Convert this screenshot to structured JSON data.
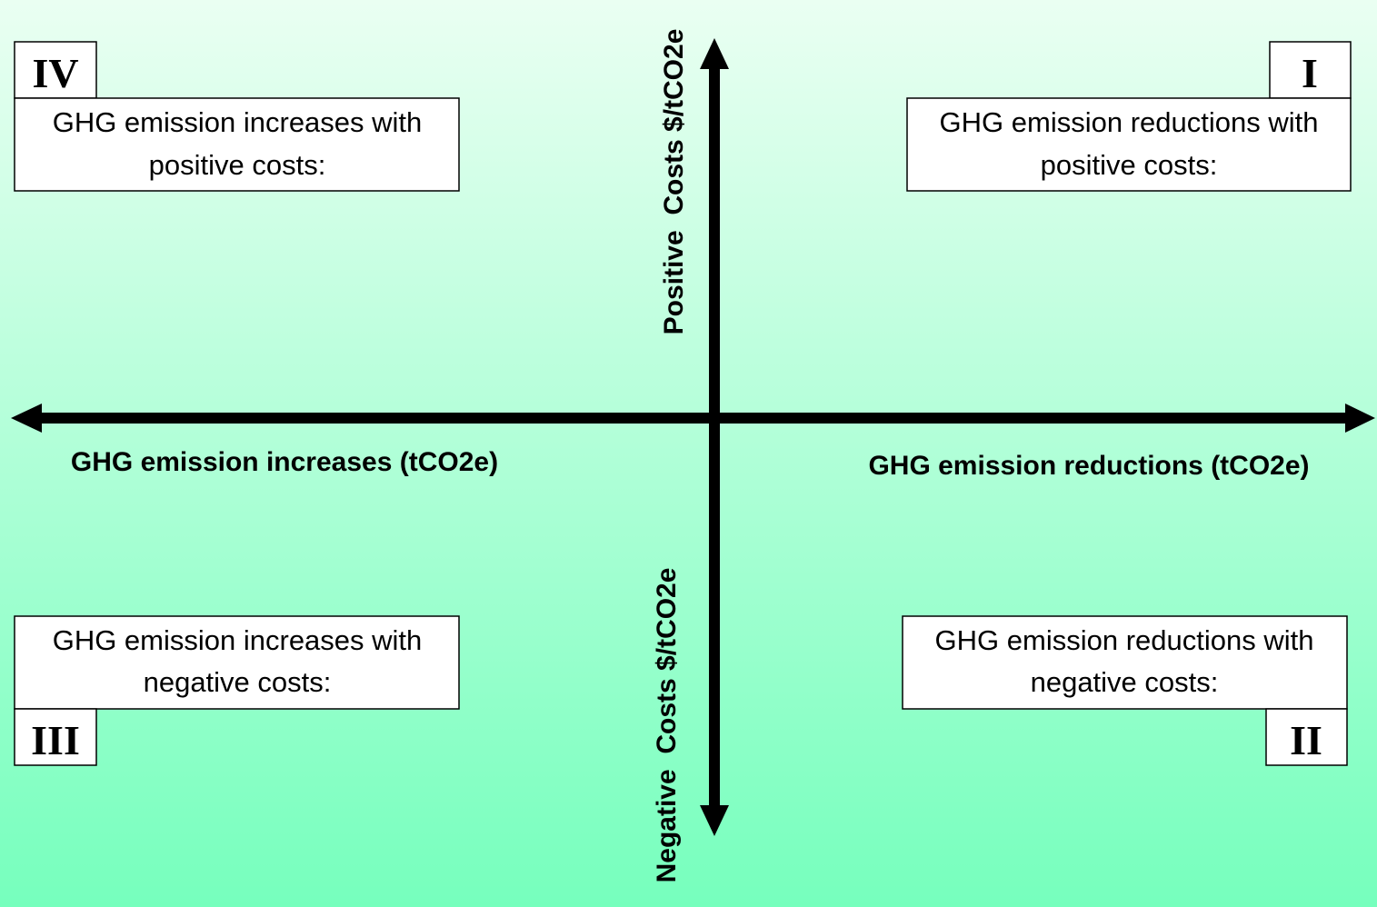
{
  "quadrants": [
    {
      "numeral": "IV",
      "lines": [
        "GHG emission increases with",
        "positive costs:"
      ]
    },
    {
      "numeral": "I",
      "lines": [
        "GHG emission reductions with",
        "positive costs:"
      ]
    },
    {
      "numeral": "III",
      "lines": [
        "GHG emission increases with",
        "negative costs:"
      ]
    },
    {
      "numeral": "II",
      "lines": [
        "GHG emission reductions with",
        "negative costs:"
      ]
    }
  ],
  "axes": {
    "positive_y": "Positive  Costs $/tCO2e",
    "negative_y": "Negative  Costs $/tCO2e",
    "negative_x": "GHG emission increases (tCO2e)",
    "positive_x": "GHG emission reductions (tCO2e)"
  }
}
